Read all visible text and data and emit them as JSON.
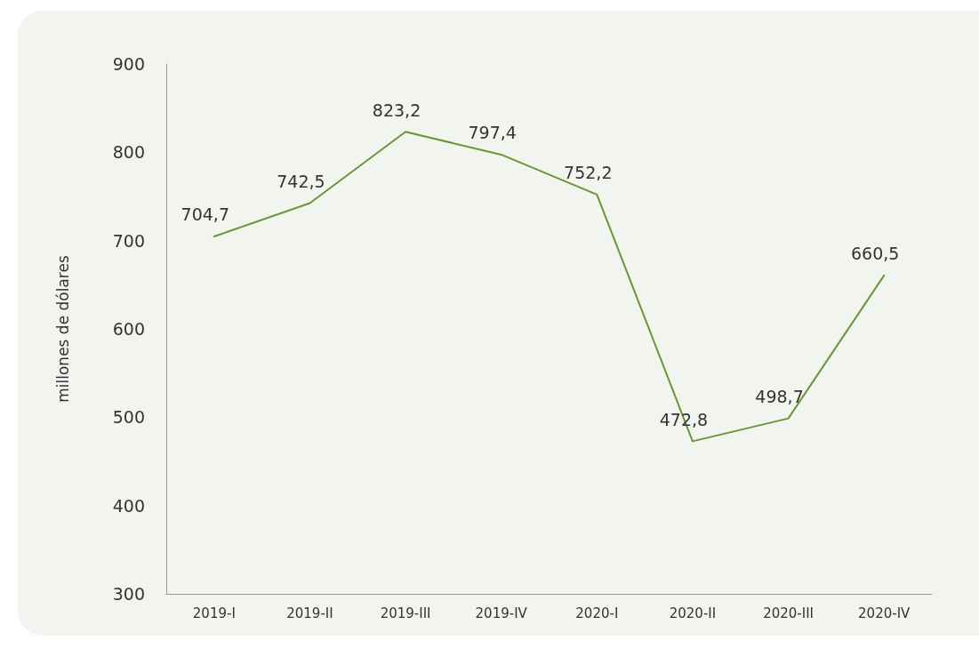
{
  "chart_data": {
    "type": "line",
    "ylabel": "millones de dólares",
    "categories": [
      "2019-I",
      "2019-II",
      "2019-III",
      "2019-IV",
      "2020-I",
      "2020-II",
      "2020-III",
      "2020-IV"
    ],
    "series": [
      {
        "color": "#669933",
        "values": [
          704.7,
          742.5,
          823.2,
          797.4,
          752.2,
          472.8,
          498.7,
          660.5
        ],
        "value_labels": [
          "704,7",
          "742,5",
          "823,2",
          "797,4",
          "752,2",
          "472,8",
          "498,7",
          "660,5"
        ]
      }
    ],
    "ylim": [
      300,
      900
    ],
    "yticks": [
      300,
      400,
      500,
      600,
      700,
      800,
      900
    ],
    "grid": false,
    "marker": "none",
    "line_style": "solid"
  }
}
